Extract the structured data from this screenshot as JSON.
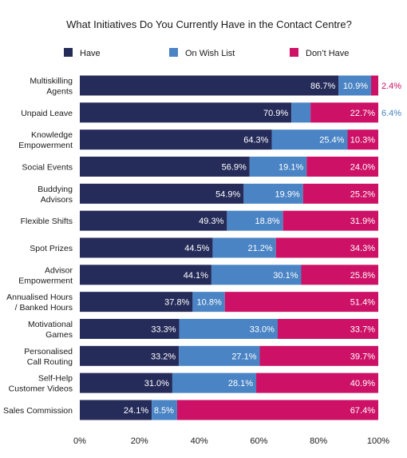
{
  "chart_data": {
    "type": "bar",
    "orientation": "horizontal",
    "stacked": true,
    "title": "What Initiatives Do You Currently Have in the Contact Centre?",
    "xlabel": "",
    "ylabel": "",
    "xlim": [
      0,
      100
    ],
    "x_ticks": [
      "0%",
      "20%",
      "40%",
      "60%",
      "80%",
      "100%"
    ],
    "grid": false,
    "legend_position": "top",
    "categories": [
      [
        "Multiskilling",
        "Agents"
      ],
      [
        "Unpaid Leave"
      ],
      [
        "Knowledge",
        "Empowerment"
      ],
      [
        "Social Events"
      ],
      [
        "Buddying",
        "Advisors"
      ],
      [
        "Flexible Shifts"
      ],
      [
        "Spot Prizes"
      ],
      [
        "Advisor",
        "Empowerment"
      ],
      [
        "Annualised Hours",
        "/ Banked Hours"
      ],
      [
        "Motivational",
        "Games"
      ],
      [
        "Personalised",
        "Call Routing"
      ],
      [
        "Self-Help",
        "Customer Videos"
      ],
      [
        "Sales Commission"
      ]
    ],
    "series": [
      {
        "name": "Have",
        "color": "#262c5a",
        "values": [
          86.7,
          70.9,
          64.3,
          56.9,
          54.9,
          49.3,
          44.5,
          44.1,
          37.8,
          33.3,
          33.2,
          31.0,
          24.1
        ],
        "labels": [
          "86.7%",
          "70.9%",
          "64.3%",
          "56.9%",
          "54.9%",
          "49.3%",
          "44.5%",
          "44.1%",
          "37.8%",
          "33.3%",
          "33.2%",
          "31.0%",
          "24.1%"
        ]
      },
      {
        "name": "On Wish List",
        "color": "#4a84c4",
        "values": [
          10.9,
          6.4,
          25.4,
          19.1,
          19.9,
          18.8,
          21.2,
          30.1,
          10.8,
          33.0,
          27.1,
          28.1,
          8.5
        ],
        "labels": [
          "10.9%",
          "6.4%",
          "25.4%",
          "19.1%",
          "19.9%",
          "18.8%",
          "21.2%",
          "30.1%",
          "10.8%",
          "33.0%",
          "27.1%",
          "28.1%",
          "8.5%"
        ]
      },
      {
        "name": "Don’t Have",
        "color": "#cc1166",
        "values": [
          2.4,
          22.7,
          10.3,
          24.0,
          25.2,
          31.9,
          34.3,
          25.8,
          51.4,
          33.7,
          39.7,
          40.9,
          67.4
        ],
        "labels": [
          "2.4%",
          "22.7%",
          "10.3%",
          "24.0%",
          "25.2%",
          "31.9%",
          "34.3%",
          "25.8%",
          "51.4%",
          "33.7%",
          "39.7%",
          "40.9%",
          "67.4%"
        ]
      }
    ]
  }
}
